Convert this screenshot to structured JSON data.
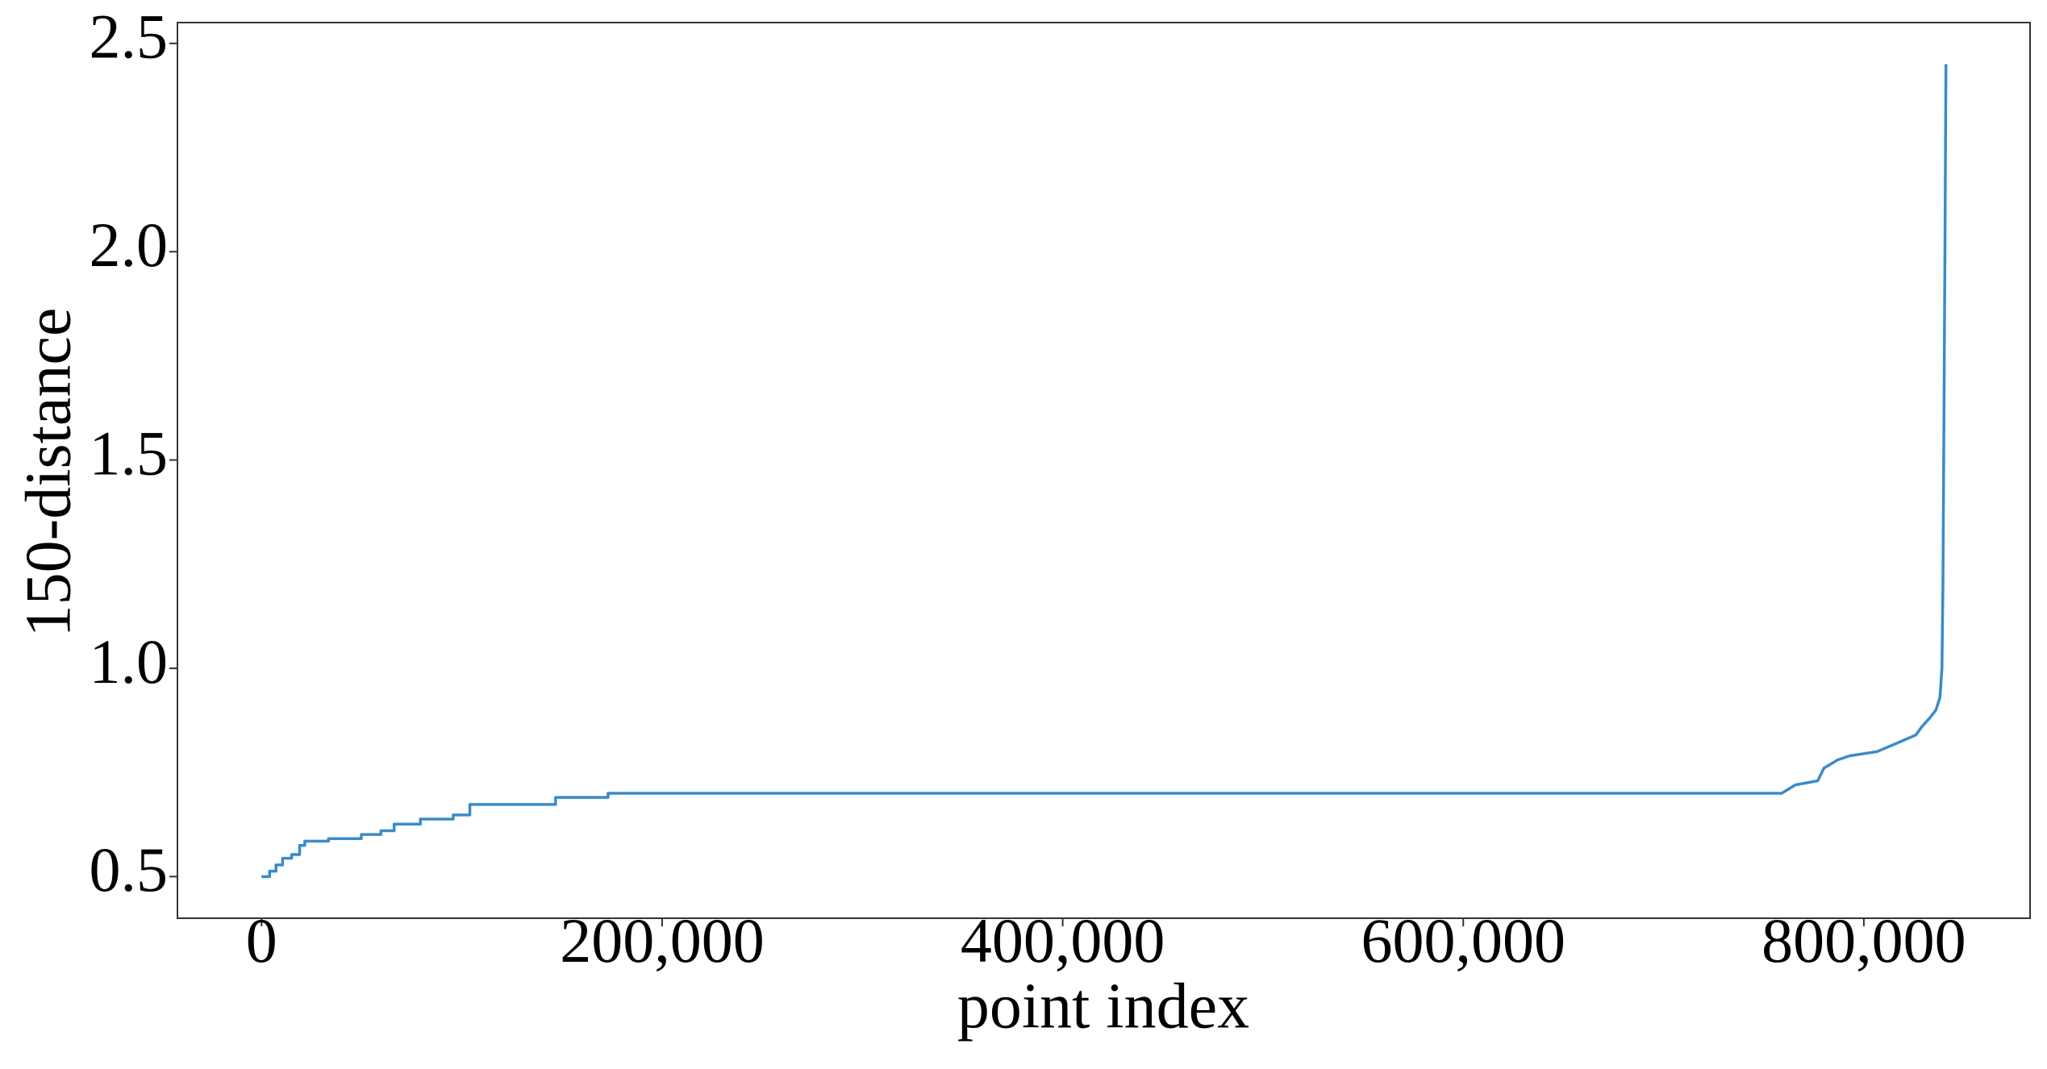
{
  "chart_data": {
    "type": "line",
    "xlabel": "point index",
    "ylabel": "150-distance",
    "color": "#3a8bc9",
    "xlim": [
      -42000,
      883000
    ],
    "ylim": [
      0.4,
      2.55
    ],
    "xticks": [
      0,
      {
        "value": 200000,
        "label": "200,000"
      },
      {
        "value": 400000,
        "label": "400,000"
      },
      {
        "value": 600000,
        "label": "600,000"
      },
      {
        "value": 800000,
        "label": "800,000"
      }
    ],
    "yticks": [
      0.5,
      {
        "value": 1,
        "label": "1.0"
      },
      1.5,
      {
        "value": 2,
        "label": "2.0"
      },
      2.5
    ],
    "grid": false,
    "x": [
      0,
      4000,
      4000,
      7200,
      7200,
      10500,
      10500,
      15000,
      15000,
      19000,
      19000,
      21600,
      21600,
      33400,
      33400,
      49800,
      49800,
      59600,
      59600,
      66200,
      66200,
      79300,
      79300,
      95700,
      95700,
      104000,
      104000,
      146800,
      146800,
      173000,
      173000,
      759000,
      765800,
      777000,
      780000,
      786900,
      793000,
      806600,
      816400,
      826000,
      829000,
      832800,
      836000,
      838000,
      839000,
      839500,
      840000,
      840500,
      841000
    ],
    "values": [
      0.5,
      0.5,
      0.513,
      0.513,
      0.528,
      0.528,
      0.544,
      0.544,
      0.553,
      0.553,
      0.575,
      0.575,
      0.585,
      0.585,
      0.591,
      0.591,
      0.601,
      0.601,
      0.61,
      0.61,
      0.626,
      0.626,
      0.638,
      0.638,
      0.648,
      0.648,
      0.673,
      0.673,
      0.69,
      0.69,
      0.7,
      0.7,
      0.72,
      0.73,
      0.76,
      0.78,
      0.79,
      0.8,
      0.82,
      0.84,
      0.86,
      0.88,
      0.9,
      0.93,
      1.0,
      1.2,
      1.6,
      2.0,
      2.45
    ]
  }
}
